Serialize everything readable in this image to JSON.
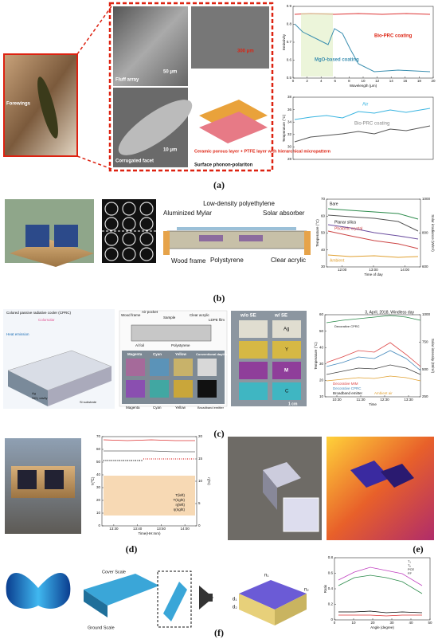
{
  "panel_a": {
    "label": "(a)",
    "forewings": "Forewings",
    "fluff": "Fluff array",
    "fluff_scale": "50 μm",
    "facet": "Corrugated facet",
    "facet_scale": "10 μm",
    "top_scale": "300 μm",
    "layer_note": "Ceramic porous layer + PTFE layer with hierarchical micropattern",
    "spp": "Surface phonon-polariton",
    "emissivity_chart": {
      "ylabel": "Emissivity",
      "xlabel": "Wavelength (μm)",
      "series": [
        "Bio-PRC coating",
        "MgO-based coating"
      ],
      "yticks": [
        0.5,
        0.6,
        0.7,
        0.8,
        0.9
      ],
      "xticks": [
        0,
        2,
        4,
        6,
        8,
        10,
        12,
        14,
        16,
        18,
        20
      ]
    },
    "temperature_chart": {
      "ylabel": "Temperature (°C)",
      "series": [
        "Air",
        "Bio-PRC coating"
      ],
      "yticks": [
        28,
        30,
        32,
        34,
        36,
        38
      ]
    }
  },
  "panel_b": {
    "label": "(b)",
    "ldpe": "Low-density polyethylene",
    "mylar": "Aluminized Mylar",
    "absorber": "Solar absorber",
    "wood": "Wood frame",
    "polystyrene": "Polystyrene",
    "acrylic": "Clear acrylic",
    "chart": {
      "ylabel": "Temperature (°C)",
      "y2label": "Solar irradiance (W/m²)",
      "xlabel": "Time of day",
      "series": [
        "Bare",
        "Planar silica",
        "Photonic crystal",
        "Ambient"
      ],
      "yticks": [
        30,
        40,
        50,
        60,
        70
      ],
      "y2ticks": [
        600,
        800,
        1000
      ],
      "xticks": [
        "12:00",
        "13:00",
        "14:00"
      ]
    }
  },
  "panel_c": {
    "label": "(c)",
    "cprc": "Colored passive radiative cooler (CPRC)",
    "heat": "Heat emission",
    "colorsolar": "Colorsolar",
    "ag": "Ag",
    "cavity": "SiO₂ cavity",
    "substrate": "Si substrate",
    "box": [
      "Wood frame",
      "Air pocket",
      "Sample",
      "Clear acrylic",
      "LDPE film",
      "Al foil",
      "Polystyrene"
    ],
    "colors_top": [
      "Magenta",
      "Cyan",
      "Yellow",
      "Conventional daytime cooler"
    ],
    "colors_bottom": [
      "Magenta",
      "Cyan",
      "Yellow",
      "Broadband emitter"
    ],
    "wo_se": "w/o SE",
    "w_se": "w/ SE",
    "swatches": [
      "Ag",
      "Y",
      "M",
      "C"
    ],
    "scale": "1 cm",
    "chart": {
      "note": "3, April, 2018, Windless day",
      "inset": "Decorative CPRC",
      "ylabel": "Temperature (°C)",
      "y2label": "Solar intensity (W/m²)",
      "xlabel": "Time",
      "series": [
        "Decorative MIM",
        "Decorative CPRC",
        "Broadband emitter",
        "Ambient air"
      ],
      "yticks": [
        10,
        20,
        30,
        40,
        50,
        60
      ],
      "y2ticks": [
        250,
        500,
        750,
        1000
      ],
      "xticks": [
        "10:30",
        "11:30",
        "12:30",
        "13:30"
      ]
    }
  },
  "panel_d": {
    "label": "(d)",
    "chart": {
      "ylabel": "T(℃)",
      "y2label": "η(%)",
      "xlabel": "Time(HH:mm)",
      "series": [
        "T(left)",
        "T(right)",
        "η(left)",
        "η(right)"
      ],
      "yticks": [
        0,
        10,
        20,
        30,
        40,
        50,
        60,
        70
      ],
      "y2ticks": [
        0,
        5,
        10,
        15,
        20
      ],
      "xticks": [
        "13:30",
        "13:40",
        "13:50",
        "14:00"
      ]
    }
  },
  "panel_e": {
    "label": "(e)"
  },
  "panel_f": {
    "label": "(f)",
    "cover": "Cover Scale",
    "ground": "Ground Scale",
    "n1": "n₁",
    "n2": "n₂",
    "d1": "d₁",
    "d2": "d₂",
    "chart": {
      "ylabel": "Ratio",
      "xlabel": "Angle (degree)",
      "series": [
        "Tₛ",
        "Tₚ",
        "PCE",
        "FF"
      ],
      "yticks": [
        0,
        0.2,
        0.4,
        0.6,
        0.8
      ],
      "xticks": [
        0,
        10,
        20,
        30,
        40,
        50
      ]
    }
  }
}
